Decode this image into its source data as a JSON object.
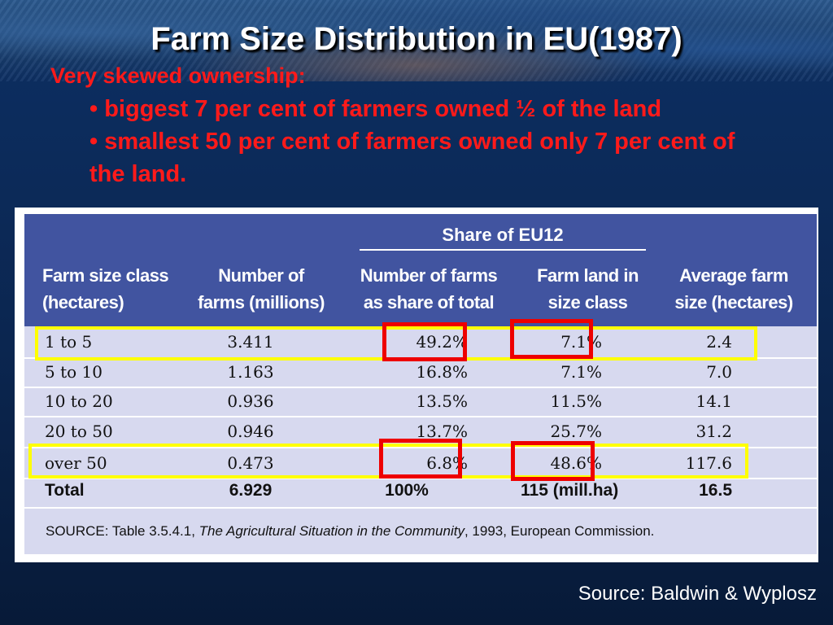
{
  "slide": {
    "title": "Farm Size Distribution in EU(1987)",
    "intro": "Very skewed ownership:",
    "bullets": [
      "• biggest 7 per cent of farmers owned ½ of the land",
      "• smallest 50 per cent of farmers owned only 7 per cent of the land."
    ],
    "credit": "Source: Baldwin & Wyplosz"
  },
  "table": {
    "group_header": "Share of EU12",
    "columns": [
      [
        "Farm size class",
        "(hectares)"
      ],
      [
        "Number of",
        "farms (millions)"
      ],
      [
        "Number of farms",
        "as share of total"
      ],
      [
        "Farm land in",
        "size class"
      ],
      [
        "Average farm",
        "size (hectares)"
      ]
    ],
    "rows": [
      [
        "1 to 5",
        "3.411",
        "49.2%",
        "7.1%",
        "2.4"
      ],
      [
        "5 to 10",
        "1.163",
        "16.8%",
        "7.1%",
        "7.0"
      ],
      [
        "10 to 20",
        "0.936",
        "13.5%",
        "11.5%",
        "14.1"
      ],
      [
        "20 to 50",
        "0.946",
        "13.7%",
        "25.7%",
        "31.2"
      ],
      [
        "over 50",
        "0.473",
        "6.8%",
        "48.6%",
        "117.6"
      ]
    ],
    "total": [
      "Total",
      "6.929",
      "100%",
      "115 (mill.ha)",
      "16.5"
    ],
    "source_prefix": "SOURCE: Table 3.5.4.1, ",
    "source_title": "The Agricultural Situation in the Community",
    "source_suffix": ", 1993, European Commission."
  },
  "colors": {
    "highlight_row": "#ffff00",
    "highlight_cell": "#ee0000",
    "header_bg": "#4154a0",
    "body_bg": "#d7d9ef",
    "bullet_text": "#ff1a1a"
  }
}
